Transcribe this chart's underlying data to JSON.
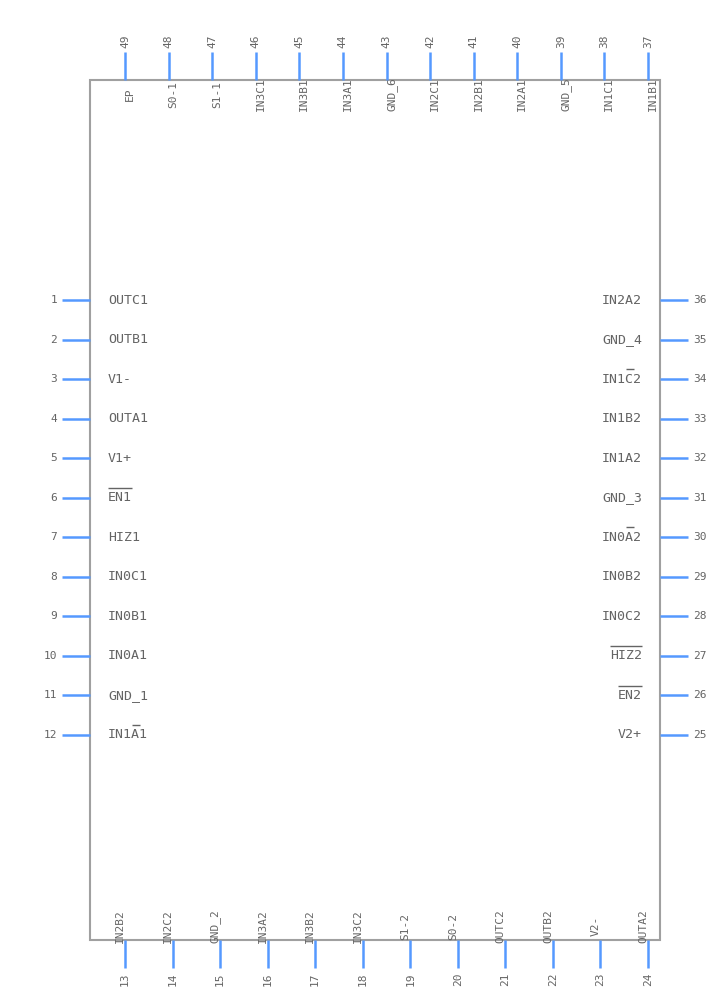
{
  "bg_color": "#ffffff",
  "box_color": "#a0a0a0",
  "pin_color": "#5599ff",
  "text_color": "#646464",
  "left_pins": [
    {
      "num": 1,
      "label": "OUTC1",
      "overbar": ""
    },
    {
      "num": 2,
      "label": "OUTB1",
      "overbar": ""
    },
    {
      "num": 3,
      "label": "V1-",
      "overbar": ""
    },
    {
      "num": 4,
      "label": "OUTA1",
      "overbar": ""
    },
    {
      "num": 5,
      "label": "V1+",
      "overbar": ""
    },
    {
      "num": 6,
      "label": "EN1",
      "overbar": "EN1"
    },
    {
      "num": 7,
      "label": "HIZ1",
      "overbar": ""
    },
    {
      "num": 8,
      "label": "IN0C1",
      "overbar": ""
    },
    {
      "num": 9,
      "label": "IN0B1",
      "overbar": ""
    },
    {
      "num": 10,
      "label": "IN0A1",
      "overbar": ""
    },
    {
      "num": 11,
      "label": "GND_1",
      "overbar": ""
    },
    {
      "num": 12,
      "label": "IN1A1",
      "overbar": "A"
    }
  ],
  "right_pins": [
    {
      "num": 36,
      "label": "IN2A2",
      "overbar": ""
    },
    {
      "num": 35,
      "label": "GND_4",
      "overbar": ""
    },
    {
      "num": 34,
      "label": "IN1C2",
      "overbar": "C"
    },
    {
      "num": 33,
      "label": "IN1B2",
      "overbar": ""
    },
    {
      "num": 32,
      "label": "IN1A2",
      "overbar": ""
    },
    {
      "num": 31,
      "label": "GND_3",
      "overbar": ""
    },
    {
      "num": 30,
      "label": "IN0A2",
      "overbar": "A"
    },
    {
      "num": 29,
      "label": "IN0B2",
      "overbar": ""
    },
    {
      "num": 28,
      "label": "IN0C2",
      "overbar": ""
    },
    {
      "num": 27,
      "label": "HIZ2",
      "overbar": "HIZ2"
    },
    {
      "num": 26,
      "label": "EN2",
      "overbar": "EN2"
    },
    {
      "num": 25,
      "label": "V2+",
      "overbar": ""
    }
  ],
  "top_pins": [
    {
      "num": 49,
      "label": "EP",
      "overbar": ""
    },
    {
      "num": 48,
      "label": "S0-1",
      "overbar": ""
    },
    {
      "num": 47,
      "label": "S1-1",
      "overbar": ""
    },
    {
      "num": 46,
      "label": "IN3C1",
      "overbar": ""
    },
    {
      "num": 45,
      "label": "IN3B1",
      "overbar": ""
    },
    {
      "num": 44,
      "label": "IN3A1",
      "overbar": ""
    },
    {
      "num": 43,
      "label": "GND_6",
      "overbar": ""
    },
    {
      "num": 42,
      "label": "IN2C1",
      "overbar": "C"
    },
    {
      "num": 41,
      "label": "IN2B1",
      "overbar": ""
    },
    {
      "num": 40,
      "label": "IN2A1",
      "overbar": ""
    },
    {
      "num": 39,
      "label": "GND_5",
      "overbar": ""
    },
    {
      "num": 38,
      "label": "IN1C1",
      "overbar": "C"
    },
    {
      "num": 37,
      "label": "IN1B1",
      "overbar": ""
    }
  ],
  "bottom_pins": [
    {
      "num": 13,
      "label": "IN2B2",
      "overbar": ""
    },
    {
      "num": 14,
      "label": "IN2C2",
      "overbar": ""
    },
    {
      "num": 15,
      "label": "GND_2",
      "overbar": ""
    },
    {
      "num": 16,
      "label": "IN3A2",
      "overbar": "A"
    },
    {
      "num": 17,
      "label": "IN3B2",
      "overbar": ""
    },
    {
      "num": 18,
      "label": "IN3C2",
      "overbar": ""
    },
    {
      "num": 19,
      "label": "S1-2",
      "overbar": ""
    },
    {
      "num": 20,
      "label": "S0-2",
      "overbar": ""
    },
    {
      "num": 21,
      "label": "OUTC2",
      "overbar": ""
    },
    {
      "num": 22,
      "label": "OUTB2",
      "overbar": ""
    },
    {
      "num": 23,
      "label": "V2-",
      "overbar": ""
    },
    {
      "num": 24,
      "label": "OUTA2",
      "overbar": ""
    }
  ]
}
